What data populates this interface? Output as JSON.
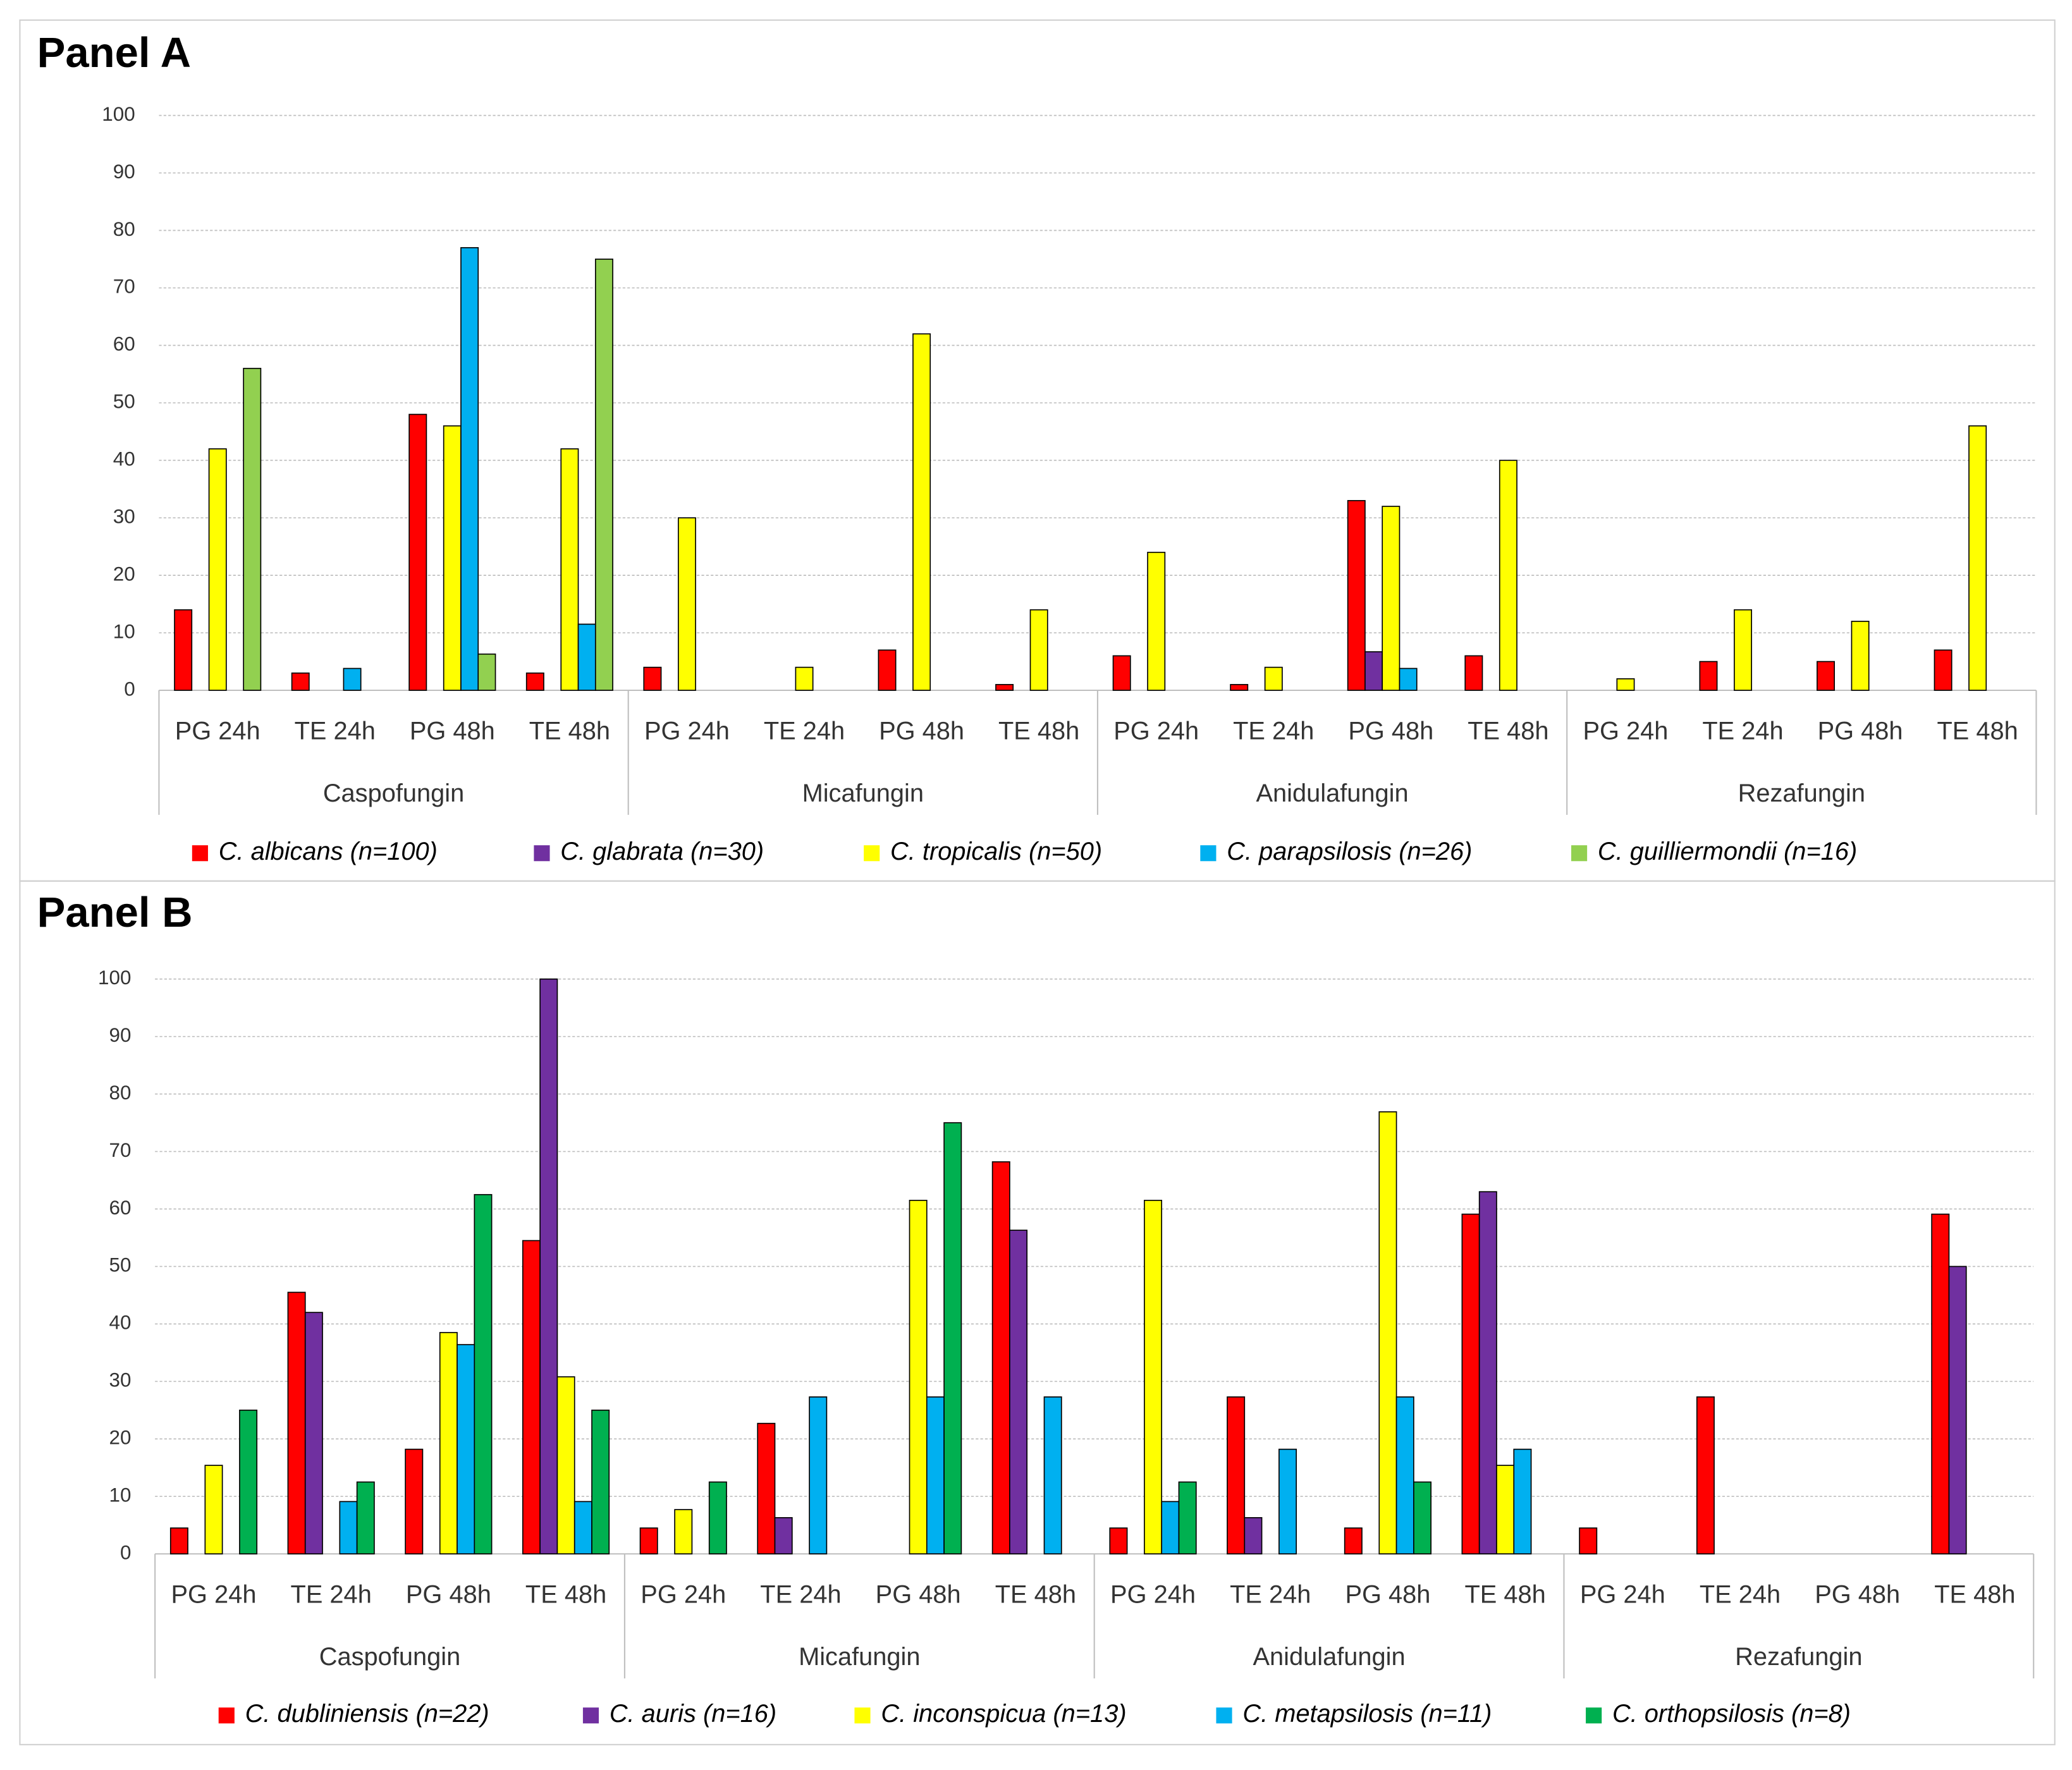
{
  "chart_data": [
    {
      "type": "bar",
      "title": "Panel A",
      "categories": [
        "PG 24h",
        "TE 24h",
        "PG 48h",
        "TE 48h",
        "PG 24h",
        "TE 24h",
        "PG 48h",
        "TE 48h",
        "PG 24h",
        "TE 24h",
        "PG 48h",
        "TE 48h",
        "PG 24h",
        "TE 24h",
        "PG 48h",
        "TE 48h"
      ],
      "groups": [
        "Caspofungin",
        "Micafungin",
        "Anidulafungin",
        "Rezafungin"
      ],
      "ylim": [
        0,
        100
      ],
      "yticks": [
        0,
        10,
        20,
        30,
        40,
        50,
        60,
        70,
        80,
        90,
        100
      ],
      "grid": true,
      "legend": "bottom",
      "series": [
        {
          "name": "C. albicans (n=100)",
          "color": "#ff0000",
          "values": [
            14,
            3,
            48,
            3,
            4,
            0,
            7,
            1,
            6,
            1,
            33,
            6,
            0,
            5,
            5,
            7
          ]
        },
        {
          "name": "C. glabrata (n=30)",
          "color": "#7030a0",
          "values": [
            0,
            0,
            0,
            0,
            0,
            0,
            0,
            0,
            0,
            0,
            6.7,
            0,
            0,
            0,
            0,
            0
          ]
        },
        {
          "name": "C. tropicalis (n=50)",
          "color": "#ffff00",
          "values": [
            42,
            0,
            46,
            42,
            30,
            4,
            62,
            14,
            24,
            4,
            32,
            40,
            2,
            14,
            12,
            46
          ]
        },
        {
          "name": "C. parapsilosis (n=26)",
          "color": "#00b0f0",
          "values": [
            0,
            3.8,
            77,
            11.5,
            0,
            0,
            0,
            0,
            0,
            0,
            3.8,
            0,
            0,
            0,
            0,
            0
          ]
        },
        {
          "name": "C. guilliermondii (n=16)",
          "color": "#92d050",
          "values": [
            56,
            0,
            6.3,
            75,
            0,
            0,
            0,
            0,
            0,
            0,
            0,
            0,
            0,
            0,
            0,
            0
          ]
        }
      ]
    },
    {
      "type": "bar",
      "title": "Panel B",
      "categories": [
        "PG 24h",
        "TE 24h",
        "PG 48h",
        "TE 48h",
        "PG 24h",
        "TE 24h",
        "PG 48h",
        "TE 48h",
        "PG 24h",
        "TE 24h",
        "PG 48h",
        "TE 48h",
        "PG 24h",
        "TE 24h",
        "PG 48h",
        "TE 48h"
      ],
      "groups": [
        "Caspofungin",
        "Micafungin",
        "Anidulafungin",
        "Rezafungin"
      ],
      "ylim": [
        0,
        100
      ],
      "yticks": [
        0,
        10,
        20,
        30,
        40,
        50,
        60,
        70,
        80,
        90,
        100
      ],
      "grid": true,
      "legend": "bottom",
      "series": [
        {
          "name": "C. dubliniensis (n=22)",
          "color": "#ff0000",
          "values": [
            4.5,
            45.5,
            18.2,
            54.5,
            4.5,
            22.7,
            0,
            68.2,
            4.5,
            27.3,
            4.5,
            59.1,
            4.5,
            27.3,
            0,
            59.1
          ]
        },
        {
          "name": "C. auris (n=16)",
          "color": "#7030a0",
          "values": [
            0,
            42,
            0,
            100,
            0,
            6.3,
            0,
            56.3,
            0,
            6.3,
            0,
            63,
            0,
            0,
            0,
            50
          ]
        },
        {
          "name": "C. inconspicua (n=13)",
          "color": "#ffff00",
          "values": [
            15.4,
            0,
            38.5,
            30.8,
            7.7,
            0,
            61.5,
            0,
            61.5,
            0,
            76.9,
            15.4,
            0,
            0,
            0,
            0
          ]
        },
        {
          "name": "C. metapsilosis (n=11)",
          "color": "#00b0f0",
          "values": [
            0,
            9.1,
            36.4,
            9.1,
            0,
            27.3,
            27.3,
            27.3,
            9.1,
            18.2,
            27.3,
            18.2,
            0,
            0,
            0,
            0
          ]
        },
        {
          "name": "C. orthopsilosis (n=8)",
          "color": "#00b050",
          "values": [
            25,
            12.5,
            62.5,
            25,
            12.5,
            0,
            75,
            0,
            12.5,
            0,
            12.5,
            0,
            0,
            0,
            0,
            0
          ]
        }
      ]
    }
  ]
}
